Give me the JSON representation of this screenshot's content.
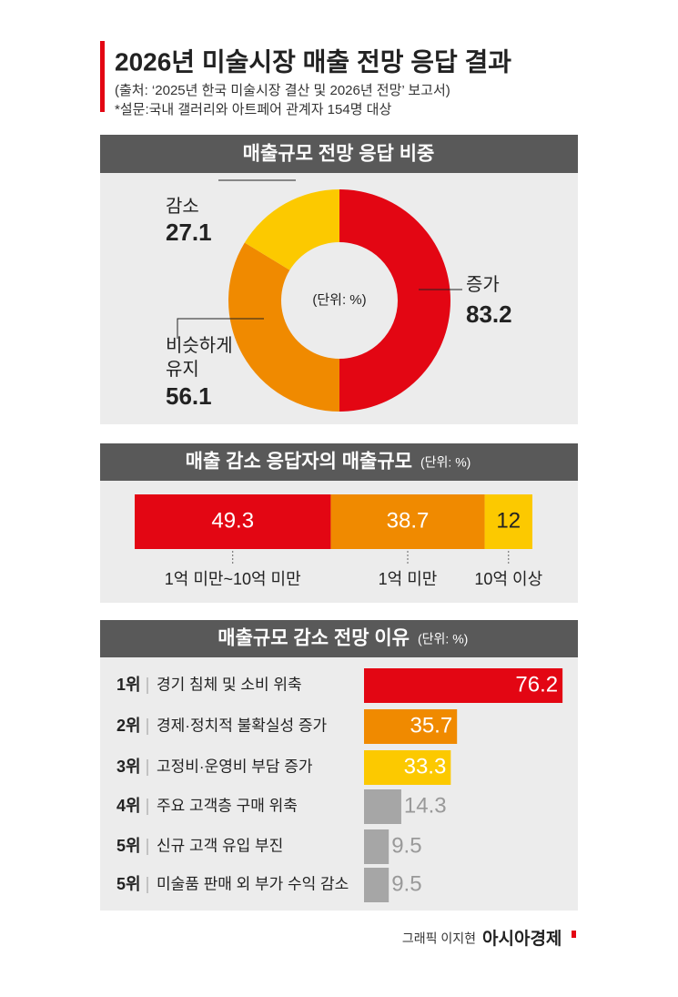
{
  "header": {
    "title": "2026년 미술시장 매출 전망 응답 결과",
    "source": "(출처: ‘2025년 한국 미술시장 결산 및 2026년 전망’ 보고서)",
    "note": "*설문:국내 갤러리와 아트페어 관계자 154명 대상"
  },
  "chart_data": [
    {
      "type": "donut",
      "title": "매출규모 전망 응답 비중",
      "center_label": "(단위: %)",
      "categories": [
        "증가",
        "비슷하게\n유지",
        "감소"
      ],
      "values": [
        83.2,
        56.1,
        27.1
      ],
      "colors": [
        "#e30613",
        "#f08a00",
        "#fcc900"
      ]
    },
    {
      "type": "stacked-bar",
      "title": "매출 감소 응답자의 매출규모",
      "unit": "(단위: %)",
      "categories": [
        "1억 미만~10억 미만",
        "1억 미만",
        "10억 이상"
      ],
      "values": [
        49.3,
        38.7,
        12
      ],
      "colors": [
        "#e30613",
        "#f08a00",
        "#fcc900"
      ],
      "xlim": [
        0,
        100
      ]
    },
    {
      "type": "hbar",
      "title": "매출규모 감소 전망 이유",
      "unit": "(단위: %)",
      "ranks": [
        "1위",
        "2위",
        "3위",
        "4위",
        "5위",
        "5위"
      ],
      "categories": [
        "경기 침체 및 소비 위축",
        "경제·정치적 불확실성 증가",
        "고정비·운영비 부담 증가",
        "주요 고객층 구매 위축",
        "신규 고객 유입 부진",
        "미술품 판매 외 부가 수익 감소"
      ],
      "values": [
        76.2,
        35.7,
        33.3,
        14.3,
        9.5,
        9.5
      ],
      "colors": [
        "#e30613",
        "#f08a00",
        "#fcc900",
        "#a6a6a6",
        "#a6a6a6",
        "#a6a6a6"
      ],
      "xlim": [
        0,
        80
      ]
    }
  ],
  "footer": {
    "credit": "그래픽 이지현",
    "brand": "아시아경제"
  }
}
